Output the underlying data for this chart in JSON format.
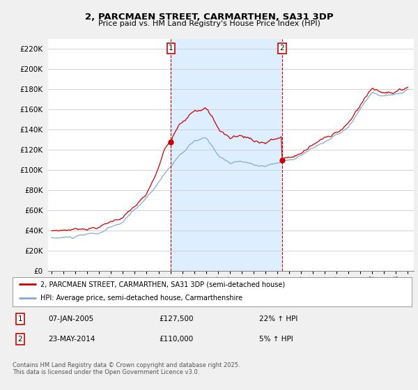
{
  "title": "2, PARCMAEN STREET, CARMARTHEN, SA31 3DP",
  "subtitle": "Price paid vs. HM Land Registry's House Price Index (HPI)",
  "ylim": [
    0,
    230000
  ],
  "yticks": [
    0,
    20000,
    40000,
    60000,
    80000,
    100000,
    120000,
    140000,
    160000,
    180000,
    200000,
    220000
  ],
  "legend_line1": "2, PARCMAEN STREET, CARMARTHEN, SA31 3DP (semi-detached house)",
  "legend_line2": "HPI: Average price, semi-detached house, Carmarthenshire",
  "line_color_price": "#cc0000",
  "line_color_hpi": "#88aacc",
  "shade_color": "#ddeeff",
  "marker1_x": 2005.05,
  "marker2_x": 2014.4,
  "sale1_price": 127500,
  "sale2_price": 110000,
  "annotation1": {
    "label": "1",
    "date": "07-JAN-2005",
    "price": "£127,500",
    "pct": "22% ↑ HPI"
  },
  "annotation2": {
    "label": "2",
    "date": "23-MAY-2014",
    "price": "£110,000",
    "pct": "5% ↑ HPI"
  },
  "footnote": "Contains HM Land Registry data © Crown copyright and database right 2025.\nThis data is licensed under the Open Government Licence v3.0.",
  "background_color": "#f0f0f0",
  "plot_bg_color": "#ffffff",
  "grid_color": "#cccccc",
  "xlim_left": 1994.7,
  "xlim_right": 2025.5
}
